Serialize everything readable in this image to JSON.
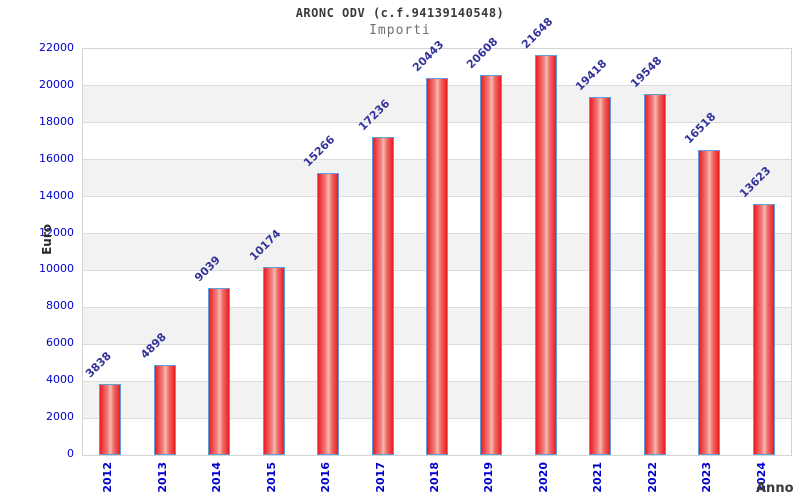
{
  "chart_data": {
    "type": "bar",
    "title": "ARONC ODV (c.f.94139140548)",
    "subtitle": "Importi",
    "xlabel": "Anno",
    "ylabel": "Euro",
    "categories": [
      "2012",
      "2013",
      "2014",
      "2015",
      "2016",
      "2017",
      "2018",
      "2019",
      "2020",
      "2021",
      "2022",
      "2023",
      "2024"
    ],
    "values": [
      3838,
      4898,
      9039,
      10174,
      15266,
      17236,
      20443,
      20608,
      21648,
      19418,
      19548,
      16518,
      13623
    ],
    "ylim": [
      0,
      22000
    ],
    "ytick_step": 2000,
    "grid": true,
    "legend": "none",
    "layout": {
      "alternating_bands": true,
      "bar_labels": "rotated-45-above-bar",
      "x_labels": "rotated-90-vertical"
    },
    "colors": {
      "bar_red": "#ec1c24",
      "bar_highlight": "#f6b9b4",
      "bar_border": "#5e9fd9",
      "tick_label_blue": "#0000cd",
      "value_label_navy": "#333399",
      "band_gray": "#f2f2f2",
      "gridline_gray": "#dcdcdc",
      "title_color": "#3a3a3a",
      "subtitle_color": "#707070"
    }
  }
}
